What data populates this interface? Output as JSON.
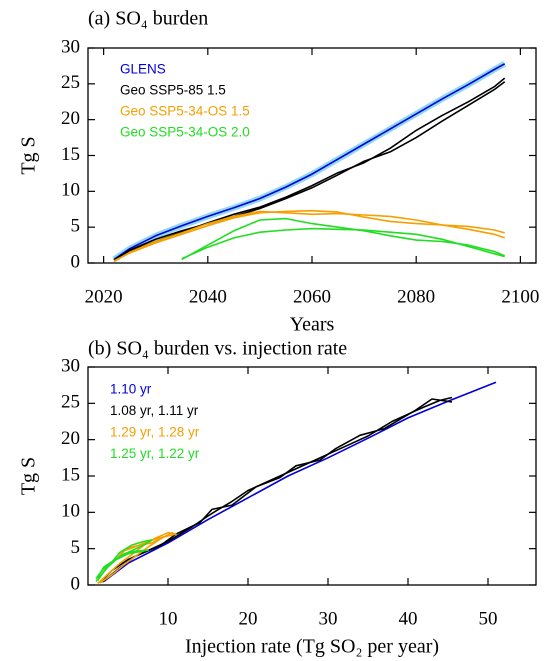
{
  "chart_data": [
    {
      "type": "line",
      "title": "(a) SO₄ burden",
      "xlabel": "Years",
      "ylabel": "Tg S",
      "x": [
        2022,
        2025,
        2030,
        2035,
        2040,
        2045,
        2050,
        2055,
        2060,
        2065,
        2070,
        2075,
        2080,
        2085,
        2090,
        2095,
        2097
      ],
      "xlim": [
        2017,
        2103
      ],
      "xticks": [
        2020,
        2040,
        2060,
        2080,
        2100
      ],
      "ylim": [
        0,
        30
      ],
      "yticks": [
        0,
        5,
        10,
        15,
        20,
        25,
        30
      ],
      "series": [
        {
          "name": "GLENS",
          "color": "#0000dd",
          "band_color": "#8fd8f2",
          "runs": [
            {
              "values": [
                0.5,
                2.0,
                3.8,
                5.2,
                6.5,
                7.7,
                9.0,
                10.6,
                12.4,
                14.5,
                16.6,
                18.7,
                20.8,
                22.9,
                24.9,
                27.0,
                27.8
              ]
            }
          ]
        },
        {
          "name": "Geo SSP5-85 1.5",
          "color": "#000000",
          "runs": [
            {
              "values": [
                0.4,
                1.8,
                3.3,
                4.5,
                5.5,
                6.5,
                7.6,
                9.0,
                10.5,
                12.3,
                14.2,
                15.5,
                17.5,
                19.8,
                22.0,
                24.2,
                25.3
              ]
            },
            {
              "values": [
                0.4,
                1.6,
                3.0,
                4.3,
                5.6,
                6.8,
                7.8,
                9.2,
                10.8,
                12.6,
                14.0,
                16.0,
                18.5,
                20.6,
                22.5,
                24.6,
                25.8
              ]
            }
          ]
        },
        {
          "name": "Geo SSP5-34-OS 1.5",
          "color": "#f5a000",
          "runs": [
            {
              "values": [
                0.2,
                1.5,
                3.0,
                4.2,
                5.5,
                6.5,
                7.2,
                7.0,
                6.8,
                6.9,
                6.7,
                6.5,
                6.0,
                5.3,
                4.7,
                4.0,
                3.5
              ]
            },
            {
              "values": [
                0.3,
                1.4,
                2.8,
                4.0,
                5.2,
                6.3,
                7.0,
                7.2,
                7.3,
                7.1,
                6.4,
                5.8,
                5.5,
                5.3,
                5.1,
                4.6,
                4.2
              ]
            }
          ]
        },
        {
          "name": "Geo SSP5-34-OS 2.0",
          "color": "#22dd22",
          "runs": [
            {
              "values": [
                null,
                null,
                null,
                0.5,
                2.5,
                4.5,
                6.0,
                6.2,
                5.5,
                5.0,
                4.5,
                3.8,
                3.2,
                3.0,
                2.5,
                1.6,
                1.0
              ]
            },
            {
              "values": [
                null,
                null,
                null,
                0.6,
                2.2,
                3.5,
                4.3,
                4.6,
                4.8,
                4.7,
                4.6,
                4.3,
                4.0,
                3.3,
                2.3,
                1.3,
                0.9
              ]
            }
          ]
        }
      ]
    },
    {
      "type": "line",
      "title": "(b) SO₄ burden vs. injection rate",
      "xlabel": "Injection rate (Tg SO₂ per year)",
      "ylabel": "Tg S",
      "xlim": [
        0,
        56
      ],
      "xticks": [
        10,
        20,
        30,
        40,
        50
      ],
      "ylim": [
        0,
        30
      ],
      "yticks": [
        0,
        5,
        10,
        15,
        20,
        25,
        30
      ],
      "series": [
        {
          "name": "1.10 yr",
          "color": "#0000dd",
          "runs": [
            {
              "x": [
                2,
                5,
                10,
                15,
                20,
                25,
                30,
                35,
                40,
                45,
                51
              ],
              "values": [
                0.5,
                3,
                5.8,
                9,
                12,
                15,
                17.5,
                20.2,
                23,
                25.3,
                27.9
              ]
            }
          ]
        },
        {
          "name": "1.08 yr, 1.11 yr",
          "color": "#000000",
          "runs": [
            {
              "x": [
                1.5,
                3,
                5,
                8,
                10,
                13,
                15,
                16,
                18,
                20,
                23,
                25,
                28,
                30,
                33,
                35,
                38,
                40,
                42,
                44,
                45.5
              ],
              "values": [
                0.3,
                2,
                3.5,
                5,
                6,
                8,
                9.5,
                10.2,
                11.5,
                13,
                14.5,
                15.5,
                17,
                18,
                19.5,
                20.5,
                22.5,
                23.5,
                24.5,
                25.4,
                25.8
              ]
            },
            {
              "x": [
                1.8,
                4,
                6,
                9,
                11,
                14,
                15.5,
                18,
                21,
                24,
                26,
                29,
                31,
                34,
                37,
                39,
                41,
                43,
                45.5
              ],
              "values": [
                0.4,
                2.4,
                4,
                5.4,
                7,
                8.6,
                10.4,
                11,
                13.5,
                14.8,
                16.4,
                17.2,
                18.8,
                20.6,
                21.5,
                22.8,
                24.1,
                25.6,
                25.2
              ]
            }
          ]
        },
        {
          "name": "1.29 yr, 1.28 yr",
          "color": "#f5a000",
          "runs": [
            {
              "x": [
                1.2,
                2.5,
                4,
                5.5,
                7,
                8.5,
                10,
                11,
                9,
                7.5,
                6,
                4.5,
                3.5
              ],
              "values": [
                0.2,
                1.5,
                3,
                4.2,
                5.5,
                6.5,
                7.2,
                7,
                6.5,
                6,
                5.3,
                4.7,
                3.5
              ]
            },
            {
              "x": [
                1.5,
                3,
                4.5,
                6,
                7.5,
                9,
                10.5,
                9.5,
                8,
                6.5,
                5,
                4
              ],
              "values": [
                0.3,
                1.4,
                2.8,
                4,
                5.2,
                6.3,
                7.2,
                6.6,
                5.8,
                5.5,
                5.1,
                4.2
              ]
            }
          ]
        },
        {
          "name": "1.25 yr, 1.22 yr",
          "color": "#22dd22",
          "runs": [
            {
              "x": [
                1,
                2.5,
                4,
                5.5,
                7,
                8,
                7,
                6,
                5,
                4,
                3,
                2,
                1.2
              ],
              "values": [
                0.5,
                2.5,
                4.5,
                5.5,
                6,
                6.2,
                5.5,
                5,
                4.5,
                3.8,
                3.2,
                2.5,
                1
              ]
            },
            {
              "x": [
                1.2,
                2.2,
                3.5,
                5,
                6.5,
                7.5,
                6.5,
                5.5,
                4.5,
                3.2,
                2,
                1
              ],
              "values": [
                0.6,
                2.2,
                3.5,
                4.3,
                4.6,
                4.8,
                4.7,
                4.6,
                4.3,
                3.3,
                2.3,
                0.9
              ]
            }
          ]
        }
      ]
    }
  ]
}
